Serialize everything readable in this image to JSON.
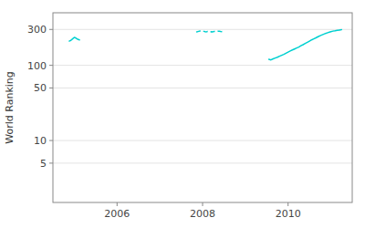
{
  "chart_data": {
    "type": "line",
    "log": "y",
    "ylabel": "World Ranking",
    "xlim": [
      2004.5,
      2011.5
    ],
    "xticks": [
      2006,
      2008,
      2010
    ],
    "ylim": [
      1.5,
      500
    ],
    "yticks": [
      5,
      10,
      50,
      100,
      300
    ],
    "grid": true,
    "series": [
      {
        "color": "#00d0d0",
        "line_style": "solid",
        "x": [
          2004.88,
          2004.92,
          2004.96,
          2005.0,
          2005.04,
          2005.08,
          2005.12
        ],
        "values": [
          210,
          215,
          225,
          235,
          230,
          222,
          218
        ]
      },
      {
        "color": "#00d0d0",
        "line_style": "dashed",
        "x": [
          2007.85,
          2007.88,
          2007.91,
          2007.94,
          2007.97,
          2008.0,
          2008.03,
          2008.06,
          2008.09,
          2008.12,
          2008.15,
          2008.18,
          2008.21,
          2008.24,
          2008.27,
          2008.3,
          2008.33,
          2008.36,
          2008.39,
          2008.42,
          2008.45,
          2008.48
        ],
        "values": [
          278,
          280,
          283,
          286,
          288,
          286,
          283,
          280,
          279,
          282,
          280,
          278,
          280,
          279,
          282,
          281,
          283,
          285,
          284,
          282,
          281,
          283
        ]
      },
      {
        "color": "#00d0d0",
        "line_style": "solid",
        "x": [
          2009.55,
          2009.6,
          2009.65,
          2009.7,
          2009.75,
          2009.8,
          2009.85,
          2009.9,
          2009.95,
          2010.0,
          2010.05,
          2010.1,
          2010.15,
          2010.2,
          2010.25,
          2010.3,
          2010.35,
          2010.4,
          2010.45,
          2010.5,
          2010.55,
          2010.6,
          2010.65,
          2010.7,
          2010.75,
          2010.8,
          2010.85,
          2010.9,
          2010.95,
          2011.0,
          2011.05,
          2011.1,
          2011.15,
          2011.2,
          2011.25
        ],
        "values": [
          120,
          118,
          122,
          125,
          128,
          132,
          136,
          140,
          145,
          150,
          155,
          160,
          165,
          170,
          175,
          182,
          188,
          195,
          202,
          210,
          218,
          225,
          232,
          240,
          248,
          255,
          262,
          268,
          275,
          280,
          285,
          288,
          292,
          295,
          298
        ]
      }
    ]
  }
}
